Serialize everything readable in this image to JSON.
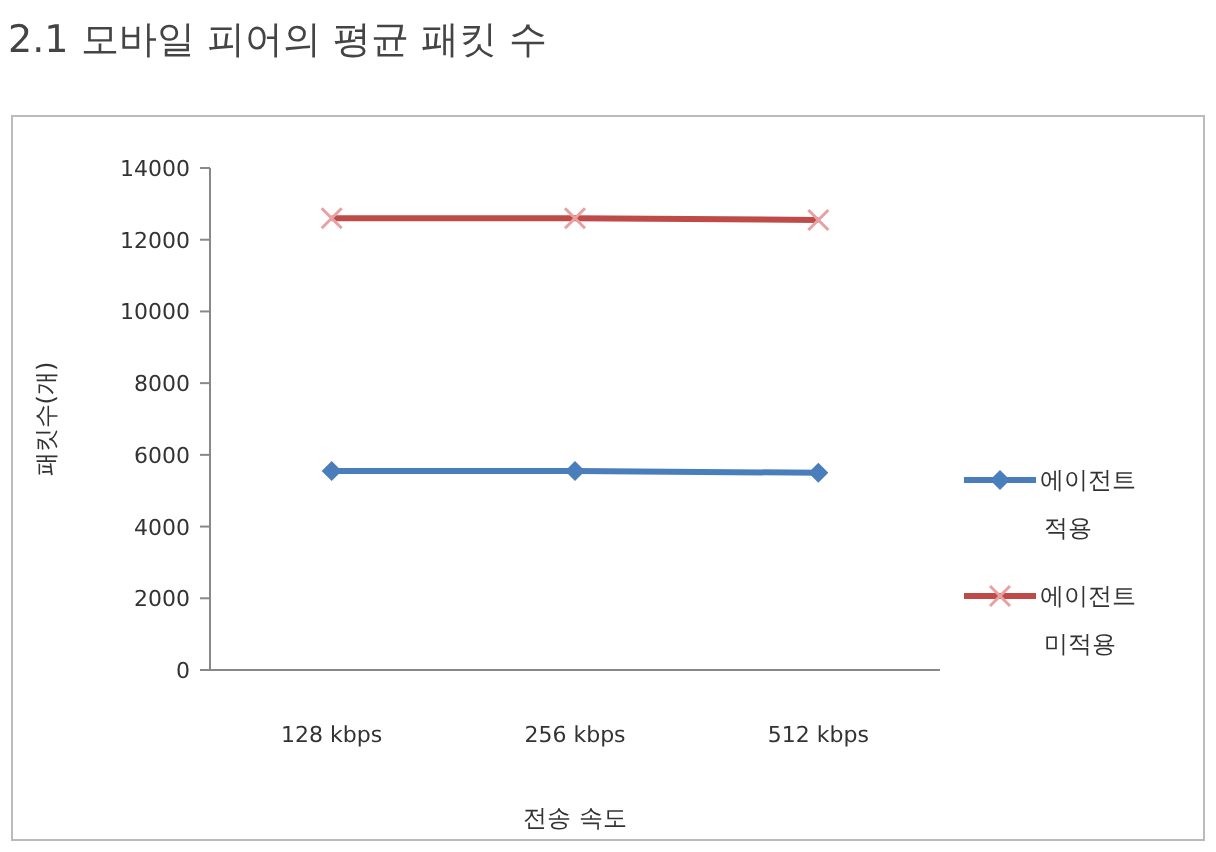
{
  "chart_data": {
    "type": "line",
    "title": "2.1 모바일 피어의 평균 패킷 수",
    "xlabel": "전송 속도",
    "ylabel": "패킷수(개)",
    "categories": [
      "128 kbps",
      "256 kbps",
      "512 kbps"
    ],
    "series": [
      {
        "name": "에이전트 적용",
        "color": "#4a7ebb",
        "marker": "diamond",
        "values": [
          5550,
          5550,
          5500
        ]
      },
      {
        "name": "에이전트 미적용",
        "color": "#be4b48",
        "marker": "cross",
        "values": [
          12600,
          12600,
          12550
        ]
      }
    ],
    "ylim": [
      0,
      14000
    ],
    "yticks": [
      0,
      2000,
      4000,
      6000,
      8000,
      10000,
      12000,
      14000
    ],
    "grid": false,
    "legend": "right"
  }
}
